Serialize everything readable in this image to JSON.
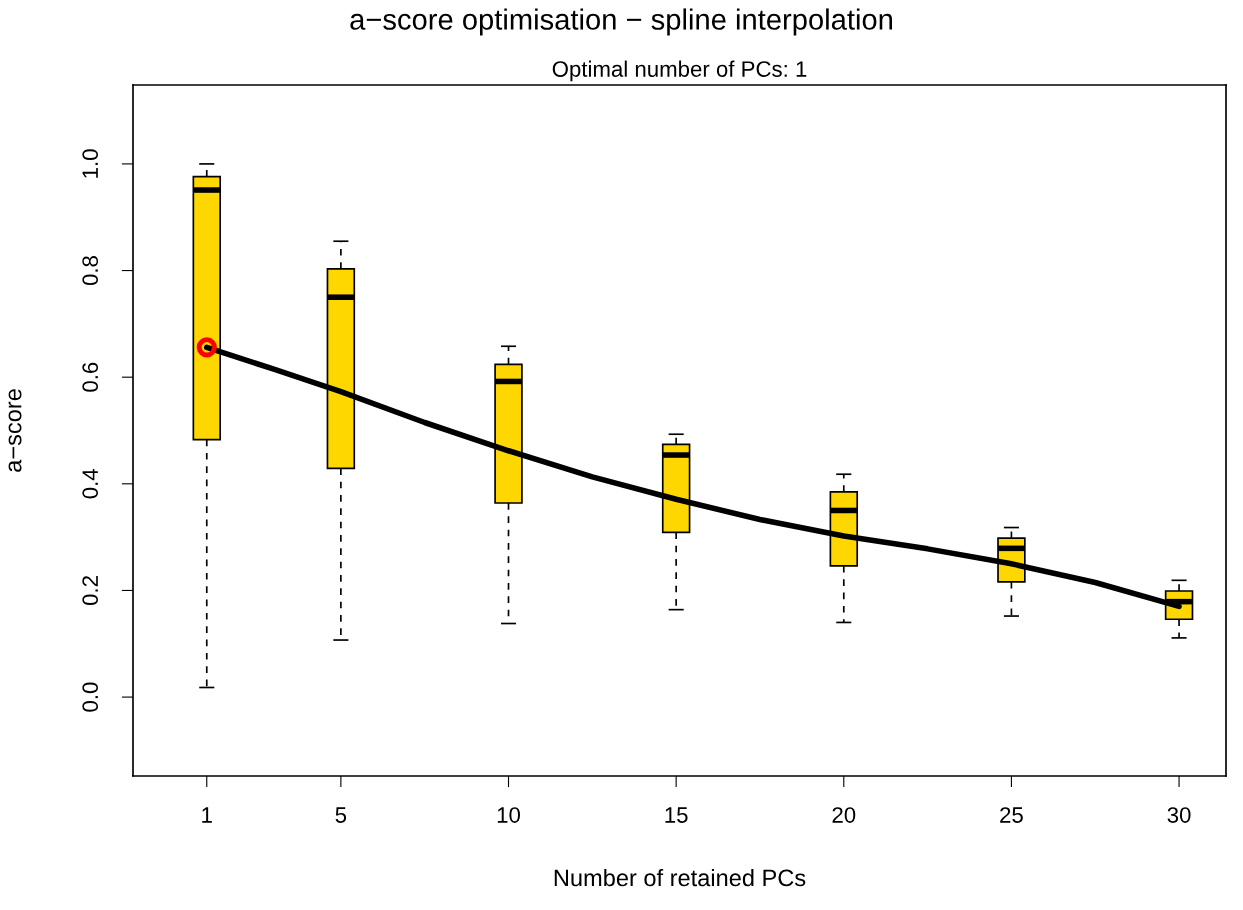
{
  "chart_data": {
    "type": "box",
    "title": "a−score optimisation − spline interpolation",
    "subtitle": "Optimal number of PCs: 1",
    "xlabel": "Number of retained PCs",
    "ylabel": "a−score",
    "x": [
      1,
      5,
      10,
      15,
      20,
      25,
      30
    ],
    "color": "#ffd700",
    "boxes": [
      {
        "low": 0.018,
        "q1": 0.483,
        "median": 0.951,
        "q3": 0.976,
        "high": 1.0
      },
      {
        "low": 0.107,
        "q1": 0.429,
        "median": 0.75,
        "q3": 0.803,
        "high": 0.855
      },
      {
        "low": 0.138,
        "q1": 0.364,
        "median": 0.592,
        "q3": 0.624,
        "high": 0.658
      },
      {
        "low": 0.164,
        "q1": 0.309,
        "median": 0.454,
        "q3": 0.474,
        "high": 0.493
      },
      {
        "low": 0.14,
        "q1": 0.246,
        "median": 0.35,
        "q3": 0.385,
        "high": 0.418
      },
      {
        "low": 0.152,
        "q1": 0.216,
        "median": 0.279,
        "q3": 0.298,
        "high": 0.318
      },
      {
        "low": 0.111,
        "q1": 0.146,
        "median": 0.179,
        "q3": 0.199,
        "high": 0.219
      }
    ],
    "series": [
      {
        "type": "line",
        "color": "#000000",
        "x": [
          1,
          3,
          5,
          7.5,
          10,
          12.5,
          15,
          17.5,
          20,
          22.5,
          25,
          27.5,
          30
        ],
        "values": [
          0.656,
          0.615,
          0.573,
          0.515,
          0.462,
          0.413,
          0.371,
          0.333,
          0.302,
          0.278,
          0.25,
          0.215,
          0.17
        ]
      },
      {
        "type": "scatter",
        "color": "#ff0000",
        "marker": "circle",
        "x": [
          1
        ],
        "values": [
          0.656
        ]
      }
    ],
    "xlim": [
      -1.2,
      31.4
    ],
    "xticks": [
      1,
      5,
      10,
      15,
      20,
      25,
      30
    ],
    "ylim": [
      -0.148,
      1.148
    ],
    "yticks": [
      {
        "value": 0,
        "label": "0.0"
      },
      {
        "value": 0.2,
        "label": "0.2"
      },
      {
        "value": 0.4,
        "label": "0.4"
      },
      {
        "value": 0.6,
        "label": "0.6"
      },
      {
        "value": 0.8,
        "label": "0.8"
      },
      {
        "value": 1,
        "label": "1.0"
      }
    ],
    "grid": false,
    "legend": false
  }
}
